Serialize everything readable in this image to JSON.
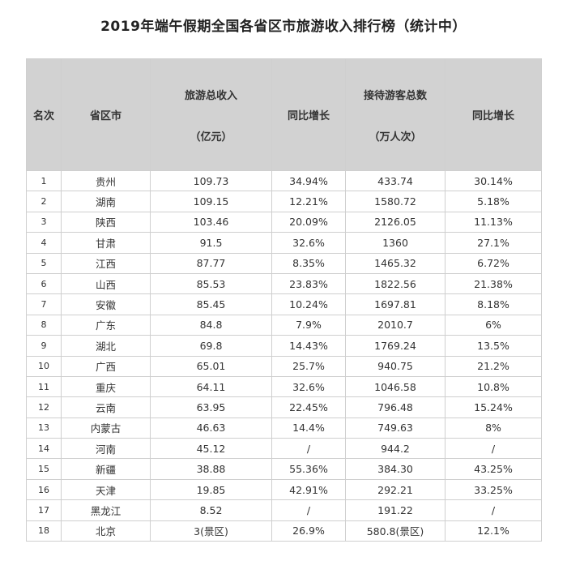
{
  "title": "2019年端午假期全国各省区市旅游收入排行榜（统计中）",
  "headers": {
    "rank": "名次",
    "province": "省区市",
    "income_line1": "旅游总收入",
    "income_line2": "（亿元）",
    "income_growth": "同比增长",
    "visitors_line1": "接待游客总数",
    "visitors_line2": "（万人次）",
    "visitors_growth": "同比增长"
  },
  "rows": [
    {
      "rank": "1",
      "province": "贵州",
      "income": "109.73",
      "income_growth": "34.94%",
      "visitors": "433.74",
      "visitors_growth": "30.14%"
    },
    {
      "rank": "2",
      "province": "湖南",
      "income": "109.15",
      "income_growth": "12.21%",
      "visitors": "1580.72",
      "visitors_growth": "5.18%"
    },
    {
      "rank": "3",
      "province": "陕西",
      "income": "103.46",
      "income_growth": "20.09%",
      "visitors": "2126.05",
      "visitors_growth": "11.13%"
    },
    {
      "rank": "4",
      "province": "甘肃",
      "income": "91.5",
      "income_growth": "32.6%",
      "visitors": "1360",
      "visitors_growth": "27.1%"
    },
    {
      "rank": "5",
      "province": "江西",
      "income": "87.77",
      "income_growth": "8.35%",
      "visitors": "1465.32",
      "visitors_growth": "6.72%"
    },
    {
      "rank": "6",
      "province": "山西",
      "income": "85.53",
      "income_growth": "23.83%",
      "visitors": "1822.56",
      "visitors_growth": "21.38%"
    },
    {
      "rank": "7",
      "province": "安徽",
      "income": "85.45",
      "income_growth": "10.24%",
      "visitors": "1697.81",
      "visitors_growth": "8.18%"
    },
    {
      "rank": "8",
      "province": "广东",
      "income": "84.8",
      "income_growth": "7.9%",
      "visitors": "2010.7",
      "visitors_growth": "6%"
    },
    {
      "rank": "9",
      "province": "湖北",
      "income": "69.8",
      "income_growth": "14.43%",
      "visitors": "1769.24",
      "visitors_growth": "13.5%"
    },
    {
      "rank": "10",
      "province": "广西",
      "income": "65.01",
      "income_growth": "25.7%",
      "visitors": "940.75",
      "visitors_growth": "21.2%"
    },
    {
      "rank": "11",
      "province": "重庆",
      "income": "64.11",
      "income_growth": "32.6%",
      "visitors": "1046.58",
      "visitors_growth": "10.8%"
    },
    {
      "rank": "12",
      "province": "云南",
      "income": "63.95",
      "income_growth": "22.45%",
      "visitors": "796.48",
      "visitors_growth": "15.24%"
    },
    {
      "rank": "13",
      "province": "内蒙古",
      "income": "46.63",
      "income_growth": "14.4%",
      "visitors": "749.63",
      "visitors_growth": "8%"
    },
    {
      "rank": "14",
      "province": "河南",
      "income": "45.12",
      "income_growth": "/",
      "visitors": "944.2",
      "visitors_growth": "/"
    },
    {
      "rank": "15",
      "province": "新疆",
      "income": "38.88",
      "income_growth": "55.36%",
      "visitors": "384.30",
      "visitors_growth": "43.25%"
    },
    {
      "rank": "16",
      "province": "天津",
      "income": "19.85",
      "income_growth": "42.91%",
      "visitors": "292.21",
      "visitors_growth": "33.25%"
    },
    {
      "rank": "17",
      "province": "黑龙江",
      "income": "8.52",
      "income_growth": "/",
      "visitors": "191.22",
      "visitors_growth": "/"
    },
    {
      "rank": "18",
      "province": "北京",
      "income": "3(景区)",
      "income_growth": "26.9%",
      "visitors": "580.8(景区)",
      "visitors_growth": "12.1%"
    }
  ]
}
